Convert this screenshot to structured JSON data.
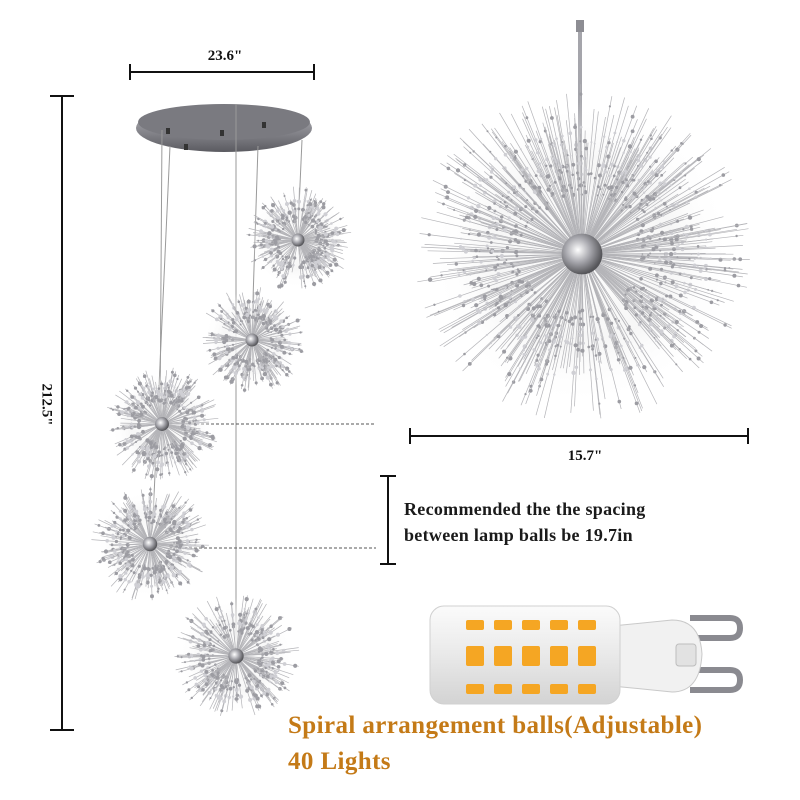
{
  "dimensions": {
    "canopy_width": "23.6\"",
    "overall_height": "212.5\"",
    "ball_diameter": "15.7\""
  },
  "spacing_note": {
    "line1": "Recommended the the spacing",
    "line2": "between lamp balls be 19.7in"
  },
  "caption": {
    "line1": "Spiral arrangement balls(Adjustable)",
    "line2": "40 Lights"
  },
  "colors": {
    "caption_text": "#c47a17",
    "dimension_lines": "#111111",
    "chrome": "#8a8a90",
    "bulb_led": "#f5a623"
  },
  "images": {
    "left": "spiral chandelier with round ceiling canopy and five dandelion crystal balls",
    "right": "close-up of a single dandelion crystal ball on a rod",
    "inset": "G9 LED bulb with yellow LED chips and two metal pins"
  }
}
